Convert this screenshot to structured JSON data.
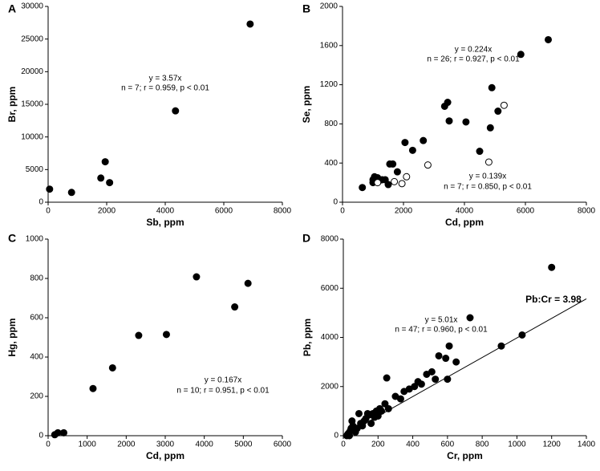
{
  "chart_data": [
    {
      "type": "scatter",
      "panel": "A",
      "xlabel": "Sb, ppm",
      "ylabel": "Br, ppm",
      "xlim": [
        0,
        8000
      ],
      "xticks": [
        0,
        2000,
        4000,
        6000,
        8000
      ],
      "ylim": [
        0,
        30000
      ],
      "yticks": [
        0,
        5000,
        10000,
        15000,
        20000,
        25000,
        30000
      ],
      "annotations": [
        "y = 3.57x",
        "n = 7; r = 0.959, p < 0.01"
      ],
      "series": [
        {
          "color": "#000000",
          "marker": "filled",
          "x": [
            50,
            800,
            1800,
            1950,
            2100,
            4350,
            6900
          ],
          "values": [
            2000,
            1500,
            3700,
            6200,
            3000,
            14000,
            27300
          ]
        }
      ]
    },
    {
      "type": "scatter",
      "panel": "B",
      "xlabel": "Cd, ppm",
      "ylabel": "Se, ppm",
      "xlim": [
        0,
        8000
      ],
      "xticks": [
        0,
        2000,
        4000,
        6000,
        8000
      ],
      "ylim": [
        0,
        2000
      ],
      "yticks": [
        0,
        400,
        800,
        1200,
        1600,
        2000
      ],
      "annotations": [
        "y = 0.224x",
        "n = 26; r = 0.927, p < 0.01",
        "y = 0.139x",
        "n = 7; r = 0.850, p < 0.01"
      ],
      "series": [
        {
          "color": "#000000",
          "marker": "filled",
          "x": [
            650,
            1000,
            1050,
            1100,
            1200,
            1300,
            1500,
            1550,
            1650,
            1800,
            2050,
            2300,
            2650,
            3350,
            3450,
            3500,
            4050,
            4500,
            4850,
            4900,
            5100,
            5850,
            6750,
            1000,
            1400,
            1150
          ],
          "values": [
            150,
            230,
            260,
            240,
            220,
            230,
            180,
            390,
            390,
            310,
            610,
            530,
            630,
            980,
            1020,
            830,
            820,
            520,
            760,
            1170,
            930,
            1510,
            1660,
            200,
            230,
            250
          ]
        },
        {
          "color": "#000000",
          "marker": "open",
          "x": [
            1150,
            1700,
            1950,
            2100,
            2800,
            4800,
            5300
          ],
          "values": [
            200,
            210,
            190,
            260,
            380,
            410,
            990
          ]
        }
      ]
    },
    {
      "type": "scatter",
      "panel": "C",
      "xlabel": "Cd, ppm",
      "ylabel": "Hg, ppm",
      "xlim": [
        0,
        6000
      ],
      "xticks": [
        0,
        1000,
        2000,
        3000,
        4000,
        5000,
        6000
      ],
      "ylim": [
        0,
        1000
      ],
      "yticks": [
        0,
        200,
        400,
        600,
        800,
        1000
      ],
      "annotations": [
        "y = 0.167x",
        "n = 10; r = 0.951, p < 0.01"
      ],
      "series": [
        {
          "color": "#000000",
          "marker": "filled",
          "x": [
            170,
            250,
            400,
            1150,
            1650,
            2320,
            3030,
            3800,
            4780,
            5120
          ],
          "values": [
            5,
            15,
            15,
            240,
            345,
            510,
            515,
            808,
            655,
            775
          ]
        }
      ]
    },
    {
      "type": "scatter",
      "panel": "D",
      "xlabel": "Cr, ppm",
      "ylabel": "Pb, ppm",
      "xlim": [
        0,
        1400
      ],
      "xticks": [
        0,
        200,
        400,
        600,
        800,
        1000,
        1200,
        1400
      ],
      "ylim": [
        0,
        8000
      ],
      "yticks": [
        0,
        2000,
        4000,
        6000,
        8000
      ],
      "annotations": [
        "y = 5.01x",
        "n = 47; r = 0.960, p < 0.01",
        "Pb:Cr = 3.98"
      ],
      "fit_line": {
        "x": [
          0,
          1400
        ],
        "values": [
          0,
          5570
        ]
      },
      "series": [
        {
          "color": "#000000",
          "marker": "filled",
          "x": [
            20,
            25,
            30,
            35,
            40,
            45,
            50,
            55,
            60,
            70,
            80,
            90,
            100,
            110,
            120,
            130,
            140,
            150,
            160,
            170,
            180,
            190,
            200,
            210,
            220,
            240,
            250,
            260,
            300,
            330,
            350,
            380,
            410,
            430,
            450,
            480,
            510,
            530,
            550,
            590,
            600,
            610,
            650,
            730,
            910,
            1030,
            1200
          ],
          "values": [
            0,
            50,
            100,
            0,
            200,
            300,
            600,
            400,
            350,
            150,
            300,
            900,
            500,
            400,
            600,
            700,
            900,
            850,
            500,
            900,
            750,
            1000,
            800,
            1100,
            1000,
            1300,
            2350,
            1100,
            1600,
            1500,
            1800,
            1900,
            2000,
            2200,
            2100,
            2500,
            2600,
            2300,
            3250,
            3150,
            2300,
            3650,
            3000,
            4800,
            3650,
            4100,
            6850
          ]
        }
      ]
    }
  ]
}
